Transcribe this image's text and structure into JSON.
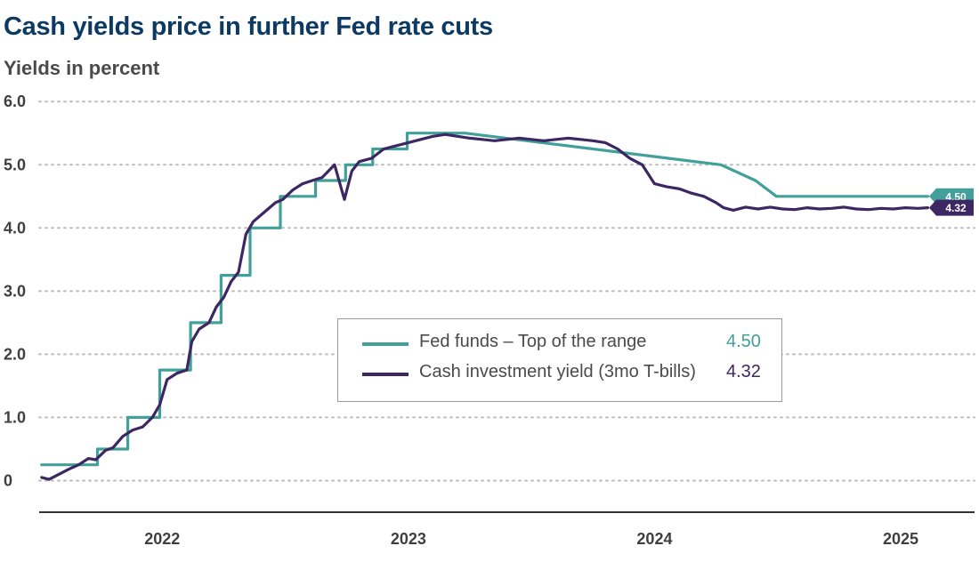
{
  "title": "Cash yields price in further Fed rate cuts",
  "subtitle": "Yields in percent",
  "colors": {
    "fed": "#41a09a",
    "cash": "#3d2763",
    "grid": "#bdbdbd",
    "axis": "#333333"
  },
  "legend": [
    {
      "label": "Fed funds – Top of the range",
      "value": "4.50",
      "series": "fed"
    },
    {
      "label": "Cash investment yield (3mo T-bills)",
      "value": "4.32",
      "series": "cash"
    }
  ],
  "chart_data": {
    "type": "line",
    "title": "Cash yields price in further Fed rate cuts",
    "ylabel": "Yields in percent",
    "xlim": [
      2021.5,
      2025.3
    ],
    "ylim": [
      -0.5,
      6.2
    ],
    "yticks": [
      0,
      1,
      2,
      3,
      4,
      5,
      6
    ],
    "ytick_labels": [
      "0",
      "1.0",
      "2.0",
      "3.0",
      "4.0",
      "5.0",
      "6.0"
    ],
    "xticks": [
      2022,
      2023,
      2024,
      2025
    ],
    "xtick_labels": [
      "2022",
      "2023",
      "2024",
      "2025"
    ],
    "grid": true,
    "legend_position": "center",
    "series": [
      {
        "name": "Fed funds – Top of the range",
        "key": "fed",
        "end_label": "4.50",
        "x": [
          2021.51,
          2021.737,
          2021.737,
          2021.86,
          2021.86,
          2021.99,
          2021.99,
          2022.115,
          2022.115,
          2022.239,
          2022.239,
          2022.357,
          2022.357,
          2022.48,
          2022.48,
          2022.623,
          2022.623,
          2022.745,
          2022.745,
          2022.855,
          2022.855,
          2022.995,
          2022.995,
          2023.23,
          2023.23,
          2024.27,
          2024.27,
          2024.41,
          2024.41,
          2024.495,
          2024.495,
          2025.11
        ],
        "y": [
          0.25,
          0.25,
          0.5,
          0.5,
          1.0,
          1.0,
          1.75,
          1.75,
          2.5,
          2.5,
          3.25,
          3.25,
          4.0,
          4.0,
          4.5,
          4.5,
          4.75,
          4.75,
          5.0,
          5.0,
          5.25,
          5.25,
          5.5,
          5.5,
          5.5,
          5.0,
          5.0,
          4.75,
          4.75,
          4.5,
          4.5,
          4.5
        ]
      },
      {
        "name": "Cash investment yield (3mo T-bills)",
        "key": "cash",
        "end_label": "4.32",
        "x": [
          2021.51,
          2021.54,
          2021.58,
          2021.62,
          2021.66,
          2021.7,
          2021.73,
          2021.77,
          2021.8,
          2021.84,
          2021.88,
          2021.92,
          2021.96,
          2021.99,
          2022.02,
          2022.06,
          2022.1,
          2022.12,
          2022.15,
          2022.19,
          2022.22,
          2022.25,
          2022.28,
          2022.31,
          2022.34,
          2022.37,
          2022.4,
          2022.43,
          2022.46,
          2022.49,
          2022.53,
          2022.57,
          2022.61,
          2022.65,
          2022.7,
          2022.74,
          2022.77,
          2022.8,
          2022.85,
          2022.9,
          2022.95,
          2023.0,
          2023.05,
          2023.1,
          2023.15,
          2023.2,
          2023.25,
          2023.3,
          2023.35,
          2023.4,
          2023.45,
          2023.5,
          2023.55,
          2023.6,
          2023.65,
          2023.7,
          2023.75,
          2023.8,
          2023.85,
          2023.9,
          2023.95,
          2024.0,
          2024.05,
          2024.1,
          2024.15,
          2024.2,
          2024.25,
          2024.28,
          2024.32,
          2024.37,
          2024.42,
          2024.47,
          2024.52,
          2024.57,
          2024.62,
          2024.67,
          2024.72,
          2024.77,
          2024.82,
          2024.87,
          2024.92,
          2024.97,
          2025.02,
          2025.07,
          2025.11
        ],
        "y": [
          0.05,
          0.02,
          0.1,
          0.18,
          0.25,
          0.35,
          0.33,
          0.48,
          0.52,
          0.7,
          0.8,
          0.85,
          1.0,
          1.2,
          1.6,
          1.7,
          1.75,
          2.2,
          2.4,
          2.5,
          2.75,
          2.9,
          3.15,
          3.3,
          3.9,
          4.1,
          4.2,
          4.3,
          4.4,
          4.45,
          4.6,
          4.7,
          4.75,
          4.8,
          5.0,
          4.45,
          4.9,
          5.05,
          5.1,
          5.25,
          5.3,
          5.35,
          5.4,
          5.45,
          5.48,
          5.45,
          5.42,
          5.4,
          5.38,
          5.4,
          5.42,
          5.4,
          5.38,
          5.4,
          5.42,
          5.4,
          5.38,
          5.35,
          5.25,
          5.1,
          5.0,
          4.7,
          4.65,
          4.62,
          4.55,
          4.5,
          4.4,
          4.32,
          4.28,
          4.33,
          4.3,
          4.33,
          4.3,
          4.29,
          4.32,
          4.3,
          4.31,
          4.33,
          4.3,
          4.29,
          4.31,
          4.3,
          4.32,
          4.31,
          4.32
        ]
      }
    ]
  }
}
